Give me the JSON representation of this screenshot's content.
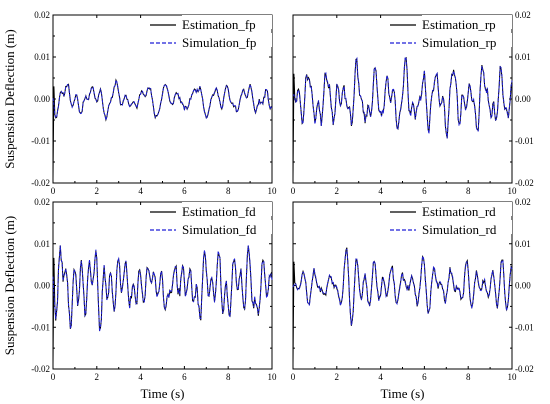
{
  "chart_data": [
    {
      "type": "line",
      "id": "fp",
      "x_ticks": [
        "0",
        "2",
        "4",
        "6",
        "8",
        "10"
      ],
      "y_ticks": [
        "-0.02",
        "-0.01",
        "0.00",
        "0.01",
        "0.02"
      ],
      "xlim": [
        0,
        10
      ],
      "ylim": [
        -0.02,
        0.02
      ],
      "ylabel": "Suspension Deflection (m)",
      "xlabel": "",
      "legend_position": "top-right",
      "series": [
        {
          "name": "Estimation_fp",
          "style": "solid",
          "color": "#000000"
        },
        {
          "name": "Simulation_fp",
          "style": "dashed",
          "color": "#1f1fd6"
        }
      ],
      "amplitude": 0.005,
      "seed": 11
    },
    {
      "type": "line",
      "id": "rp",
      "x_ticks": [
        "0",
        "2",
        "4",
        "6",
        "8",
        "10"
      ],
      "y_ticks": [
        "-0.02",
        "-0.01",
        "0.00",
        "0.01",
        "0.02"
      ],
      "xlim": [
        0,
        10
      ],
      "ylim": [
        -0.02,
        0.02
      ],
      "ylabel": "",
      "xlabel": "",
      "legend_position": "top-right",
      "series": [
        {
          "name": "Estimation_rp",
          "style": "solid",
          "color": "#000000"
        },
        {
          "name": "Simulation_rp",
          "style": "dashed",
          "color": "#1f1fd6"
        }
      ],
      "amplitude": 0.01,
      "seed": 23
    },
    {
      "type": "line",
      "id": "fd",
      "x_ticks": [
        "0",
        "2",
        "4",
        "6",
        "8",
        "10"
      ],
      "y_ticks": [
        "-0.02",
        "-0.01",
        "0.00",
        "0.01",
        "0.02"
      ],
      "xlim": [
        0,
        10
      ],
      "ylim": [
        -0.02,
        0.02
      ],
      "ylabel": "Suspension Deflection (m)",
      "xlabel": "Time (s)",
      "legend_position": "top-right",
      "series": [
        {
          "name": "Estimation_fd",
          "style": "solid",
          "color": "#000000"
        },
        {
          "name": "Simulation_fd",
          "style": "dashed",
          "color": "#1f1fd6"
        }
      ],
      "amplitude": 0.011,
      "seed": 37
    },
    {
      "type": "line",
      "id": "rd",
      "x_ticks": [
        "0",
        "2",
        "4",
        "6",
        "8",
        "10"
      ],
      "y_ticks": [
        "-0.02",
        "-0.01",
        "0.00",
        "0.01",
        "0.02"
      ],
      "xlim": [
        0,
        10
      ],
      "ylim": [
        -0.02,
        0.02
      ],
      "ylabel": "",
      "xlabel": "Time (s)",
      "legend_position": "top-right",
      "series": [
        {
          "name": "Estimation_rd",
          "style": "solid",
          "color": "#000000"
        },
        {
          "name": "Simulation_rd",
          "style": "dashed",
          "color": "#1f1fd6"
        }
      ],
      "amplitude": 0.0095,
      "seed": 51
    }
  ]
}
